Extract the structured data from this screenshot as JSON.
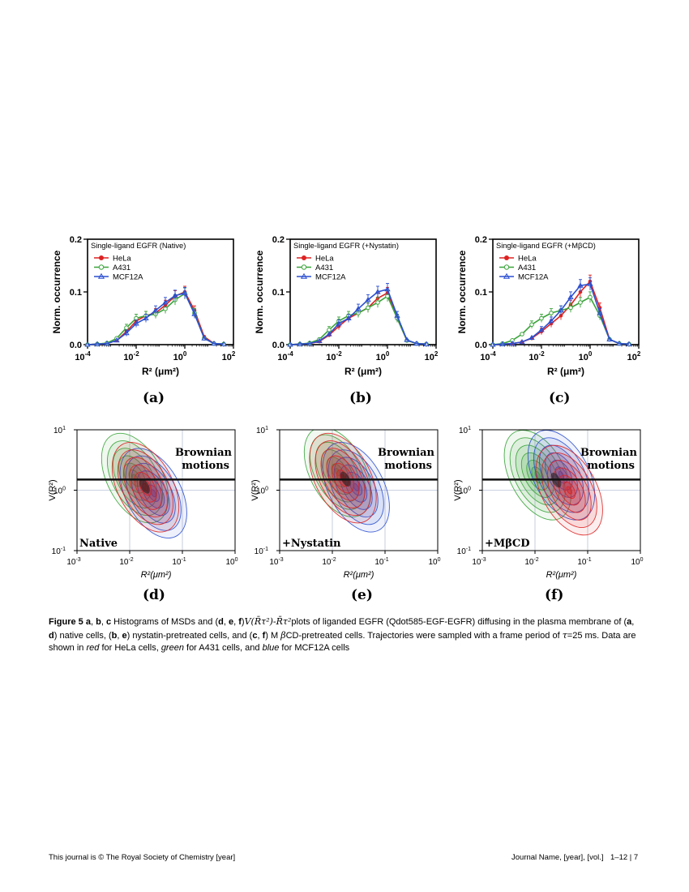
{
  "top_panels": [
    {
      "id": "a",
      "legend_title": "Single-ligand EGFR (Native)",
      "label": "(a)"
    },
    {
      "id": "b",
      "legend_title": "Single-ligand EGFR (+Nystatin)",
      "label": "(b)"
    },
    {
      "id": "c",
      "legend_title": "Single-ligand EGFR (+MβCD)",
      "label": "(c)"
    }
  ],
  "top_axes": {
    "ylabel": "Norm. occurrence",
    "xlabel": "R² (μm²)",
    "yticks": [
      "0.0",
      "0.1",
      "0.2"
    ],
    "xtick_exponents": [
      "-4",
      "-2",
      "0",
      "2"
    ]
  },
  "legend": [
    "HeLa",
    "A431",
    "MCF12A"
  ],
  "colors": {
    "HeLa": "#dd2222",
    "A431": "#3aa33a",
    "MCF12A": "#2b4fd0"
  },
  "bottom_panels": [
    {
      "id": "d",
      "condition": "Native",
      "label": "(d)"
    },
    {
      "id": "e",
      "condition": "+Nystatin",
      "label": "(e)"
    },
    {
      "id": "f",
      "condition": "+MβCD",
      "label": "(f)"
    }
  ],
  "bottom_axes": {
    "ylabel": "V(R²)",
    "xlabel": "R²(μm²)",
    "ytick_exponents": [
      "-1",
      "0",
      "1"
    ],
    "xtick_exponents": [
      "-3",
      "-2",
      "-1",
      "0"
    ],
    "brownian_line1": "Brownian",
    "brownian_line2": "motions"
  },
  "chart_data": [
    {
      "type": "line",
      "panel": "a",
      "title": "Single-ligand EGFR (Native)",
      "xlabel": "R² (μm²)",
      "ylabel": "Norm. occurrence",
      "xscale": "log",
      "xlim": [
        0.0001,
        100
      ],
      "ylim": [
        0,
        0.2
      ],
      "x_log10": [
        -4,
        -3.6,
        -3.2,
        -2.8,
        -2.4,
        -2.0,
        -1.6,
        -1.2,
        -0.8,
        -0.4,
        0.0,
        0.4,
        0.8,
        1.2,
        1.6
      ],
      "series": [
        {
          "name": "HeLa",
          "values": [
            0,
            0.001,
            0.002,
            0.008,
            0.025,
            0.045,
            0.055,
            0.06,
            0.075,
            0.092,
            0.1,
            0.065,
            0.015,
            0.002,
            0.001
          ]
        },
        {
          "name": "A431",
          "values": [
            0,
            0.001,
            0.003,
            0.012,
            0.032,
            0.05,
            0.055,
            0.058,
            0.068,
            0.085,
            0.097,
            0.06,
            0.012,
            0.002,
            0.001
          ]
        },
        {
          "name": "MCF12A",
          "values": [
            0,
            0.001,
            0.002,
            0.008,
            0.022,
            0.04,
            0.05,
            0.065,
            0.08,
            0.093,
            0.098,
            0.058,
            0.012,
            0.002,
            0.001
          ]
        }
      ]
    },
    {
      "type": "line",
      "panel": "b",
      "title": "Single-ligand EGFR (+Nystatin)",
      "xlabel": "R² (μm²)",
      "ylabel": "Norm. occurrence",
      "xscale": "log",
      "xlim": [
        0.0001,
        100
      ],
      "ylim": [
        0,
        0.2
      ],
      "x_log10": [
        -4,
        -3.6,
        -3.2,
        -2.8,
        -2.4,
        -2.0,
        -1.6,
        -1.2,
        -0.8,
        -0.4,
        0.0,
        0.4,
        0.8,
        1.2,
        1.6
      ],
      "series": [
        {
          "name": "HeLa",
          "values": [
            0,
            0.001,
            0.002,
            0.006,
            0.018,
            0.035,
            0.05,
            0.06,
            0.07,
            0.088,
            0.098,
            0.05,
            0.008,
            0.002,
            0.001
          ]
        },
        {
          "name": "A431",
          "values": [
            0,
            0.001,
            0.003,
            0.01,
            0.028,
            0.045,
            0.055,
            0.06,
            0.07,
            0.08,
            0.092,
            0.05,
            0.008,
            0.002,
            0.001
          ]
        },
        {
          "name": "MCF12A",
          "values": [
            0,
            0.001,
            0.002,
            0.007,
            0.02,
            0.04,
            0.05,
            0.068,
            0.085,
            0.1,
            0.105,
            0.055,
            0.009,
            0.002,
            0.001
          ]
        }
      ]
    },
    {
      "type": "line",
      "panel": "c",
      "title": "Single-ligand EGFR (+MβCD)",
      "xlabel": "R² (μm²)",
      "ylabel": "Norm. occurrence",
      "xscale": "log",
      "xlim": [
        0.0001,
        100
      ],
      "ylim": [
        0,
        0.2
      ],
      "x_log10": [
        -4,
        -3.6,
        -3.2,
        -2.8,
        -2.4,
        -2.0,
        -1.6,
        -1.2,
        -0.8,
        -0.4,
        0.0,
        0.4,
        0.8,
        1.2,
        1.6
      ],
      "series": [
        {
          "name": "HeLa",
          "values": [
            0,
            0.001,
            0.002,
            0.005,
            0.012,
            0.025,
            0.04,
            0.055,
            0.075,
            0.1,
            0.12,
            0.07,
            0.01,
            0.002,
            0.001
          ]
        },
        {
          "name": "A431",
          "values": [
            0,
            0.002,
            0.008,
            0.02,
            0.038,
            0.05,
            0.06,
            0.065,
            0.07,
            0.08,
            0.09,
            0.055,
            0.01,
            0.002,
            0.001
          ]
        },
        {
          "name": "MCF12A",
          "values": [
            0,
            0.001,
            0.002,
            0.005,
            0.013,
            0.028,
            0.045,
            0.065,
            0.09,
            0.112,
            0.115,
            0.06,
            0.01,
            0.002,
            0.001
          ]
        }
      ]
    },
    {
      "type": "heatmap",
      "panel": "d",
      "subtype": "2D density contour",
      "xlabel": "R²(μm²)",
      "ylabel": "V(R²)",
      "xscale": "log",
      "yscale": "log",
      "xlim": [
        0.001,
        1
      ],
      "ylim": [
        0.1,
        10
      ],
      "annotation": "Brownian motions",
      "brownian_line_y": 1.5,
      "density_centers_log10": [
        {
          "name": "HeLa",
          "x": -1.7,
          "y": 0.05
        },
        {
          "name": "A431",
          "x": -1.9,
          "y": 0.2
        },
        {
          "name": "MCF12A",
          "x": -1.55,
          "y": -0.05
        }
      ]
    },
    {
      "type": "heatmap",
      "panel": "e",
      "subtype": "2D density contour",
      "xlabel": "R²(μm²)",
      "ylabel": "V(R²)",
      "xscale": "log",
      "yscale": "log",
      "xlim": [
        0.001,
        1
      ],
      "ylim": [
        0.1,
        10
      ],
      "annotation": "Brownian motions",
      "brownian_line_y": 1.5,
      "density_centers_log10": [
        {
          "name": "HeLa",
          "x": -1.8,
          "y": 0.2
        },
        {
          "name": "A431",
          "x": -1.9,
          "y": 0.3
        },
        {
          "name": "MCF12A",
          "x": -1.55,
          "y": 0.05
        }
      ]
    },
    {
      "type": "heatmap",
      "panel": "f",
      "subtype": "2D density contour",
      "xlabel": "R²(μm²)",
      "ylabel": "V(R²)",
      "xscale": "log",
      "yscale": "log",
      "xlim": [
        0.001,
        1
      ],
      "ylim": [
        0.1,
        10
      ],
      "annotation": "Brownian motions",
      "brownian_line_y": 1.5,
      "density_centers_log10": [
        {
          "name": "HeLa",
          "x": -1.35,
          "y": 0.0
        },
        {
          "name": "A431",
          "x": -1.95,
          "y": 0.25
        },
        {
          "name": "MCF12A",
          "x": -1.5,
          "y": 0.25
        }
      ]
    }
  ],
  "caption": {
    "prefix": "Figure 5",
    "p1": " a",
    "s1": ", ",
    "p2": "b",
    "s2": ", ",
    "p3": "c",
    "t1": " Histograms of MSDs and (",
    "d": "d",
    "s3": ", ",
    "e": "e",
    "s4": ", ",
    "f": "f",
    "t2": ")",
    "math": "V(R̄τ²)-R̄τ²",
    "t3": "plots of liganded EGFR (Qdot585-EGF-EGFR) diffusing in the plasma membrane of (",
    "a2": "a",
    "s5": ", ",
    "d2": "d",
    "t4": ") native cells, (",
    "b2": "b",
    "s6": ", ",
    "e2": "e",
    "t5": ") nystatin-pretreated cells, and (",
    "c2": "c",
    "s7": ", ",
    "f2": "f",
    "t6": ") M ",
    "beta": "β",
    "t7": "CD-pretreated cells. Trajectories were sampled with a frame period of ",
    "tau": "τ",
    "t8": "=25 ms. Data are shown in ",
    "red": "red",
    "t9": " for HeLa cells, ",
    "green": "green",
    "t10": " for A431 cells, and ",
    "blue": "blue",
    "t11": " for MCF12A cells"
  },
  "footer": {
    "left": "This journal is © The Royal Society of Chemistry [year]",
    "right": "Journal Name, [year], [vol.]",
    "pages": "1–12 | 7"
  }
}
